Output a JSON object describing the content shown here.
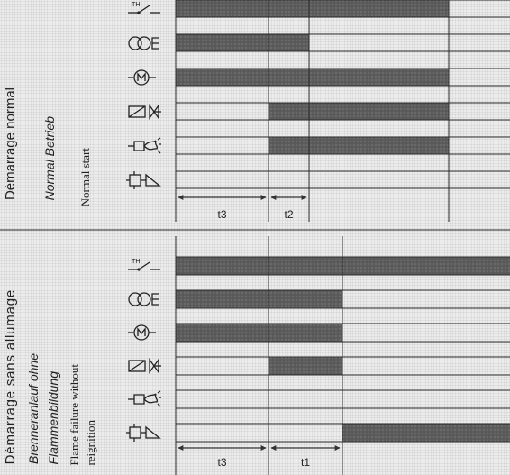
{
  "colors": {
    "paper": "#ececec",
    "bar": "#5c5c5c",
    "line": "#2a2a2a"
  },
  "panels": [
    {
      "title": "Démarrage normal",
      "subtitle_de": [
        "Normal Betrieb"
      ],
      "subtitle_en": [
        "Normal start"
      ],
      "phases": [
        {
          "label": "t3"
        },
        {
          "label": "t2"
        },
        {
          "label": ""
        },
        {
          "label": ""
        }
      ],
      "signals": [
        {
          "icon": "thermostat-switch-icon",
          "states": [
            1,
            1,
            1,
            0
          ]
        },
        {
          "icon": "ignition-transformer-icon",
          "states": [
            1,
            1,
            0,
            0
          ]
        },
        {
          "icon": "burner-motor-icon",
          "states": [
            1,
            1,
            1,
            0
          ]
        },
        {
          "icon": "fuel-valve-icon",
          "states": [
            0,
            1,
            1,
            0
          ]
        },
        {
          "icon": "flame-signal-icon",
          "states": [
            0,
            1,
            1,
            0
          ]
        },
        {
          "icon": "lockout-alarm-icon",
          "states": [
            0,
            0,
            0,
            0
          ]
        }
      ]
    },
    {
      "title": "Démarrage sans allumage",
      "subtitle_de": [
        "Brenneranlauf ohne",
        "Flammenbildung"
      ],
      "subtitle_en": [
        "Flame failure without",
        "reignition"
      ],
      "phases": [
        {
          "label": "t3"
        },
        {
          "label": "t1"
        },
        {
          "label": ""
        }
      ],
      "signals": [
        {
          "icon": "thermostat-switch-icon",
          "states": [
            1,
            1,
            1
          ]
        },
        {
          "icon": "ignition-transformer-icon",
          "states": [
            1,
            1,
            0
          ]
        },
        {
          "icon": "burner-motor-icon",
          "states": [
            1,
            1,
            0
          ]
        },
        {
          "icon": "fuel-valve-icon",
          "states": [
            0,
            1,
            0
          ]
        },
        {
          "icon": "flame-signal-icon",
          "states": [
            0,
            0,
            0
          ]
        },
        {
          "icon": "lockout-alarm-icon",
          "states": [
            0,
            0,
            1
          ]
        }
      ]
    }
  ]
}
